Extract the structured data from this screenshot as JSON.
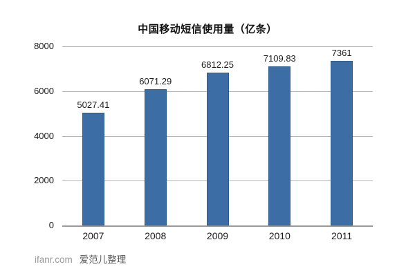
{
  "chart_data": {
    "type": "bar",
    "title": "中国移动短信使用量（亿条）",
    "categories": [
      "2007",
      "2008",
      "2009",
      "2010",
      "2011"
    ],
    "values": [
      5027.41,
      6071.29,
      6812.25,
      7109.83,
      7361
    ],
    "value_labels": [
      "5027.41",
      "6071.29",
      "6812.25",
      "7109.83",
      "7361"
    ],
    "xlabel": "",
    "ylabel": "",
    "ylim": [
      0,
      8000
    ],
    "yticks": [
      0,
      2000,
      4000,
      6000,
      8000
    ],
    "grid": "horizontal",
    "legend": "none",
    "bar_fill_color": "#3c6ea5",
    "bar_border_color": "#2b5c8f",
    "gridline_color": "#b3b3b3",
    "axis_line_color": "#999999"
  },
  "footer": {
    "source": "ifanr.com",
    "credit": "爱范儿整理"
  }
}
